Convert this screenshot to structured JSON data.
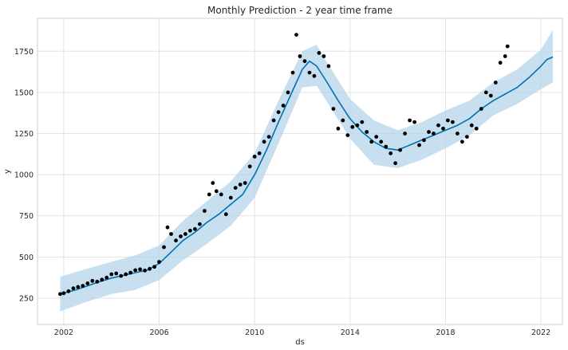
{
  "chart_data": {
    "type": "line",
    "title": "Monthly Prediction - 2 year time frame",
    "xlabel": "ds",
    "ylabel": "y",
    "x_ticks": [
      "2002",
      "2006",
      "2010",
      "2014",
      "2018",
      "2022"
    ],
    "y_ticks": [
      250,
      500,
      750,
      1000,
      1250,
      1500,
      1750
    ],
    "xlim": [
      2000.9,
      2022.9
    ],
    "ylim": [
      90,
      1950
    ],
    "grid": true,
    "colors": {
      "observed": "#000000",
      "forecast": "#0072B2",
      "interval": "#B4D4EA",
      "grid": "#e3e3e3",
      "axes_edge": "#cfcfcf"
    },
    "series": [
      {
        "role": "observed",
        "marker": "dot",
        "points": [
          [
            2001.85,
            275
          ],
          [
            2002.0,
            280
          ],
          [
            2002.2,
            292
          ],
          [
            2002.4,
            310
          ],
          [
            2002.6,
            318
          ],
          [
            2002.8,
            325
          ],
          [
            2003.0,
            340
          ],
          [
            2003.2,
            355
          ],
          [
            2003.4,
            350
          ],
          [
            2003.6,
            362
          ],
          [
            2003.8,
            375
          ],
          [
            2004.0,
            395
          ],
          [
            2004.2,
            400
          ],
          [
            2004.4,
            385
          ],
          [
            2004.6,
            395
          ],
          [
            2004.8,
            405
          ],
          [
            2005.0,
            420
          ],
          [
            2005.2,
            425
          ],
          [
            2005.4,
            418
          ],
          [
            2005.6,
            428
          ],
          [
            2005.8,
            440
          ],
          [
            2006.0,
            470
          ],
          [
            2006.2,
            560
          ],
          [
            2006.35,
            680
          ],
          [
            2006.5,
            640
          ],
          [
            2006.7,
            600
          ],
          [
            2006.9,
            625
          ],
          [
            2007.1,
            640
          ],
          [
            2007.3,
            660
          ],
          [
            2007.5,
            670
          ],
          [
            2007.7,
            700
          ],
          [
            2007.9,
            780
          ],
          [
            2008.1,
            880
          ],
          [
            2008.25,
            950
          ],
          [
            2008.4,
            900
          ],
          [
            2008.6,
            880
          ],
          [
            2008.8,
            760
          ],
          [
            2009.0,
            860
          ],
          [
            2009.2,
            920
          ],
          [
            2009.4,
            940
          ],
          [
            2009.6,
            950
          ],
          [
            2009.8,
            1050
          ],
          [
            2010.0,
            1110
          ],
          [
            2010.2,
            1130
          ],
          [
            2010.4,
            1200
          ],
          [
            2010.6,
            1230
          ],
          [
            2010.8,
            1330
          ],
          [
            2011.0,
            1380
          ],
          [
            2011.2,
            1420
          ],
          [
            2011.4,
            1500
          ],
          [
            2011.6,
            1620
          ],
          [
            2011.75,
            1850
          ],
          [
            2011.9,
            1720
          ],
          [
            2012.1,
            1690
          ],
          [
            2012.3,
            1620
          ],
          [
            2012.5,
            1600
          ],
          [
            2012.7,
            1740
          ],
          [
            2012.9,
            1720
          ],
          [
            2013.1,
            1660
          ],
          [
            2013.3,
            1400
          ],
          [
            2013.5,
            1280
          ],
          [
            2013.7,
            1330
          ],
          [
            2013.9,
            1240
          ],
          [
            2014.1,
            1290
          ],
          [
            2014.3,
            1300
          ],
          [
            2014.5,
            1320
          ],
          [
            2014.7,
            1260
          ],
          [
            2014.9,
            1200
          ],
          [
            2015.1,
            1230
          ],
          [
            2015.3,
            1200
          ],
          [
            2015.5,
            1170
          ],
          [
            2015.7,
            1130
          ],
          [
            2015.9,
            1070
          ],
          [
            2016.1,
            1150
          ],
          [
            2016.3,
            1250
          ],
          [
            2016.5,
            1330
          ],
          [
            2016.7,
            1320
          ],
          [
            2016.9,
            1180
          ],
          [
            2017.1,
            1210
          ],
          [
            2017.3,
            1260
          ],
          [
            2017.5,
            1250
          ],
          [
            2017.7,
            1300
          ],
          [
            2017.9,
            1280
          ],
          [
            2018.1,
            1330
          ],
          [
            2018.3,
            1320
          ],
          [
            2018.5,
            1250
          ],
          [
            2018.7,
            1200
          ],
          [
            2018.9,
            1230
          ],
          [
            2019.1,
            1300
          ],
          [
            2019.3,
            1280
          ],
          [
            2019.5,
            1400
          ],
          [
            2019.7,
            1500
          ],
          [
            2019.9,
            1480
          ],
          [
            2020.1,
            1560
          ],
          [
            2020.3,
            1680
          ],
          [
            2020.5,
            1720
          ],
          [
            2020.6,
            1780
          ]
        ]
      },
      {
        "role": "forecast",
        "marker": "line",
        "points": [
          [
            2001.85,
            275
          ],
          [
            2002.5,
            300
          ],
          [
            2003.0,
            325
          ],
          [
            2003.5,
            350
          ],
          [
            2004.0,
            372
          ],
          [
            2004.5,
            388
          ],
          [
            2005.0,
            405
          ],
          [
            2005.5,
            420
          ],
          [
            2006.0,
            460
          ],
          [
            2006.5,
            530
          ],
          [
            2007.0,
            600
          ],
          [
            2007.5,
            650
          ],
          [
            2008.0,
            710
          ],
          [
            2008.5,
            760
          ],
          [
            2009.0,
            820
          ],
          [
            2009.5,
            880
          ],
          [
            2010.0,
            1000
          ],
          [
            2010.5,
            1150
          ],
          [
            2011.0,
            1320
          ],
          [
            2011.5,
            1480
          ],
          [
            2012.0,
            1640
          ],
          [
            2012.3,
            1690
          ],
          [
            2012.6,
            1660
          ],
          [
            2013.0,
            1570
          ],
          [
            2013.5,
            1450
          ],
          [
            2014.0,
            1340
          ],
          [
            2014.5,
            1260
          ],
          [
            2015.0,
            1200
          ],
          [
            2015.5,
            1160
          ],
          [
            2016.0,
            1150
          ],
          [
            2016.5,
            1180
          ],
          [
            2017.0,
            1210
          ],
          [
            2017.5,
            1240
          ],
          [
            2018.0,
            1270
          ],
          [
            2018.5,
            1300
          ],
          [
            2019.0,
            1340
          ],
          [
            2019.5,
            1400
          ],
          [
            2020.0,
            1450
          ],
          [
            2020.5,
            1490
          ],
          [
            2021.0,
            1530
          ],
          [
            2021.5,
            1590
          ],
          [
            2022.0,
            1660
          ],
          [
            2022.25,
            1700
          ],
          [
            2022.5,
            1715
          ]
        ]
      },
      {
        "role": "interval",
        "marker": "band",
        "x": [
          2001.85,
          2003.0,
          2004.0,
          2005.0,
          2006.0,
          2007.0,
          2008.0,
          2009.0,
          2010.0,
          2011.0,
          2012.0,
          2012.6,
          2013.0,
          2014.0,
          2015.0,
          2016.0,
          2017.0,
          2018.0,
          2019.0,
          2020.0,
          2021.0,
          2022.0,
          2022.5
        ],
        "lower": [
          170,
          230,
          275,
          300,
          360,
          480,
          580,
          690,
          860,
          1190,
          1530,
          1540,
          1450,
          1220,
          1060,
          1040,
          1090,
          1160,
          1240,
          1360,
          1430,
          1520,
          1560
        ],
        "upper": [
          380,
          430,
          470,
          510,
          570,
          720,
          840,
          960,
          1130,
          1450,
          1750,
          1790,
          1690,
          1460,
          1330,
          1270,
          1320,
          1390,
          1450,
          1560,
          1640,
          1760,
          1880
        ]
      }
    ]
  }
}
